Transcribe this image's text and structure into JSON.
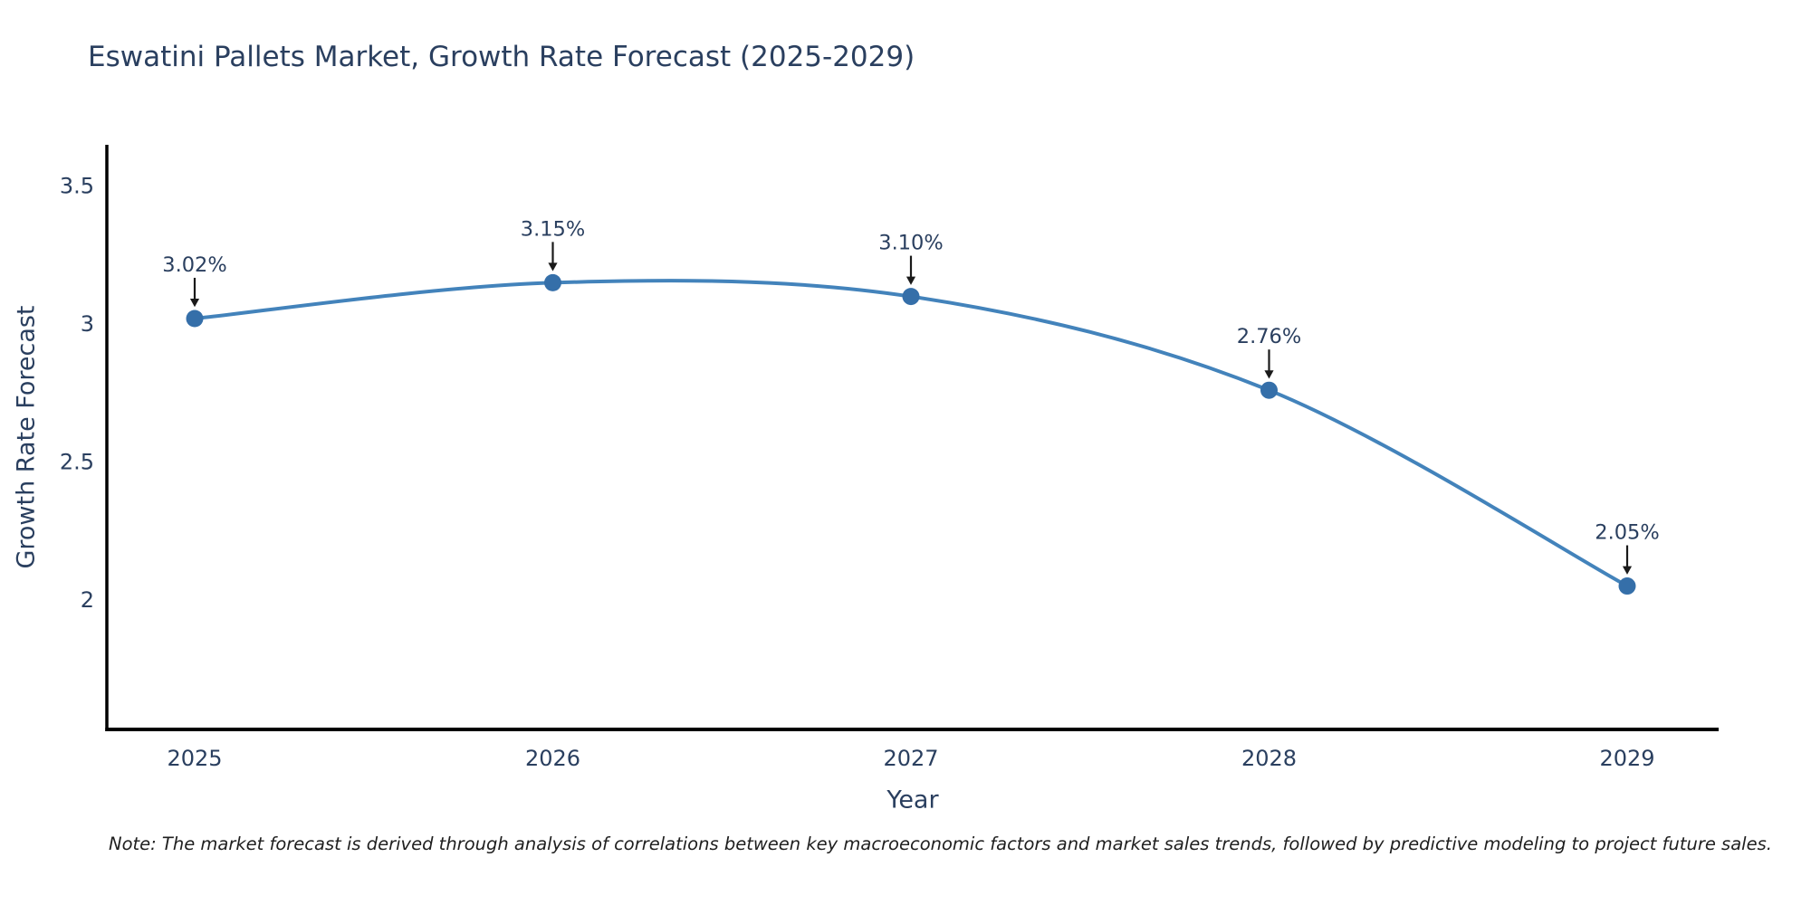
{
  "page": {
    "background": "#ffffff"
  },
  "chart_data": {
    "type": "line",
    "title": "Eswatini Pallets Market, Growth Rate Forecast (2025-2029)",
    "xlabel": "Year",
    "ylabel": "Growth Rate Forecast",
    "categories": [
      "2025",
      "2026",
      "2027",
      "2028",
      "2029"
    ],
    "series": [
      {
        "name": "Growth Rate Forecast",
        "values": [
          3.02,
          3.15,
          3.1,
          2.76,
          2.05
        ]
      }
    ],
    "point_labels": [
      "3.02%",
      "3.15%",
      "3.10%",
      "2.76%",
      "2.05%"
    ],
    "ytick_values": [
      3.5,
      3.0,
      2.5,
      2.0
    ],
    "ytick_labels": [
      "3.5",
      "3",
      "2.5",
      "2"
    ],
    "ylim": [
      1.53,
      3.65
    ],
    "grid": false,
    "legend_position": "none",
    "line_shape": "spline",
    "colors": {
      "line": "#4383bb",
      "marker": "#356fa9",
      "axis": "#000000",
      "text": "#2a3f5f",
      "annotation_text": "#2a3f5f",
      "arrow": "#1a1a1a"
    }
  },
  "footnote": "Note: The market forecast is derived through analysis of correlations between key macroeconomic factors and market sales trends, followed by predictive modeling to project future sales."
}
